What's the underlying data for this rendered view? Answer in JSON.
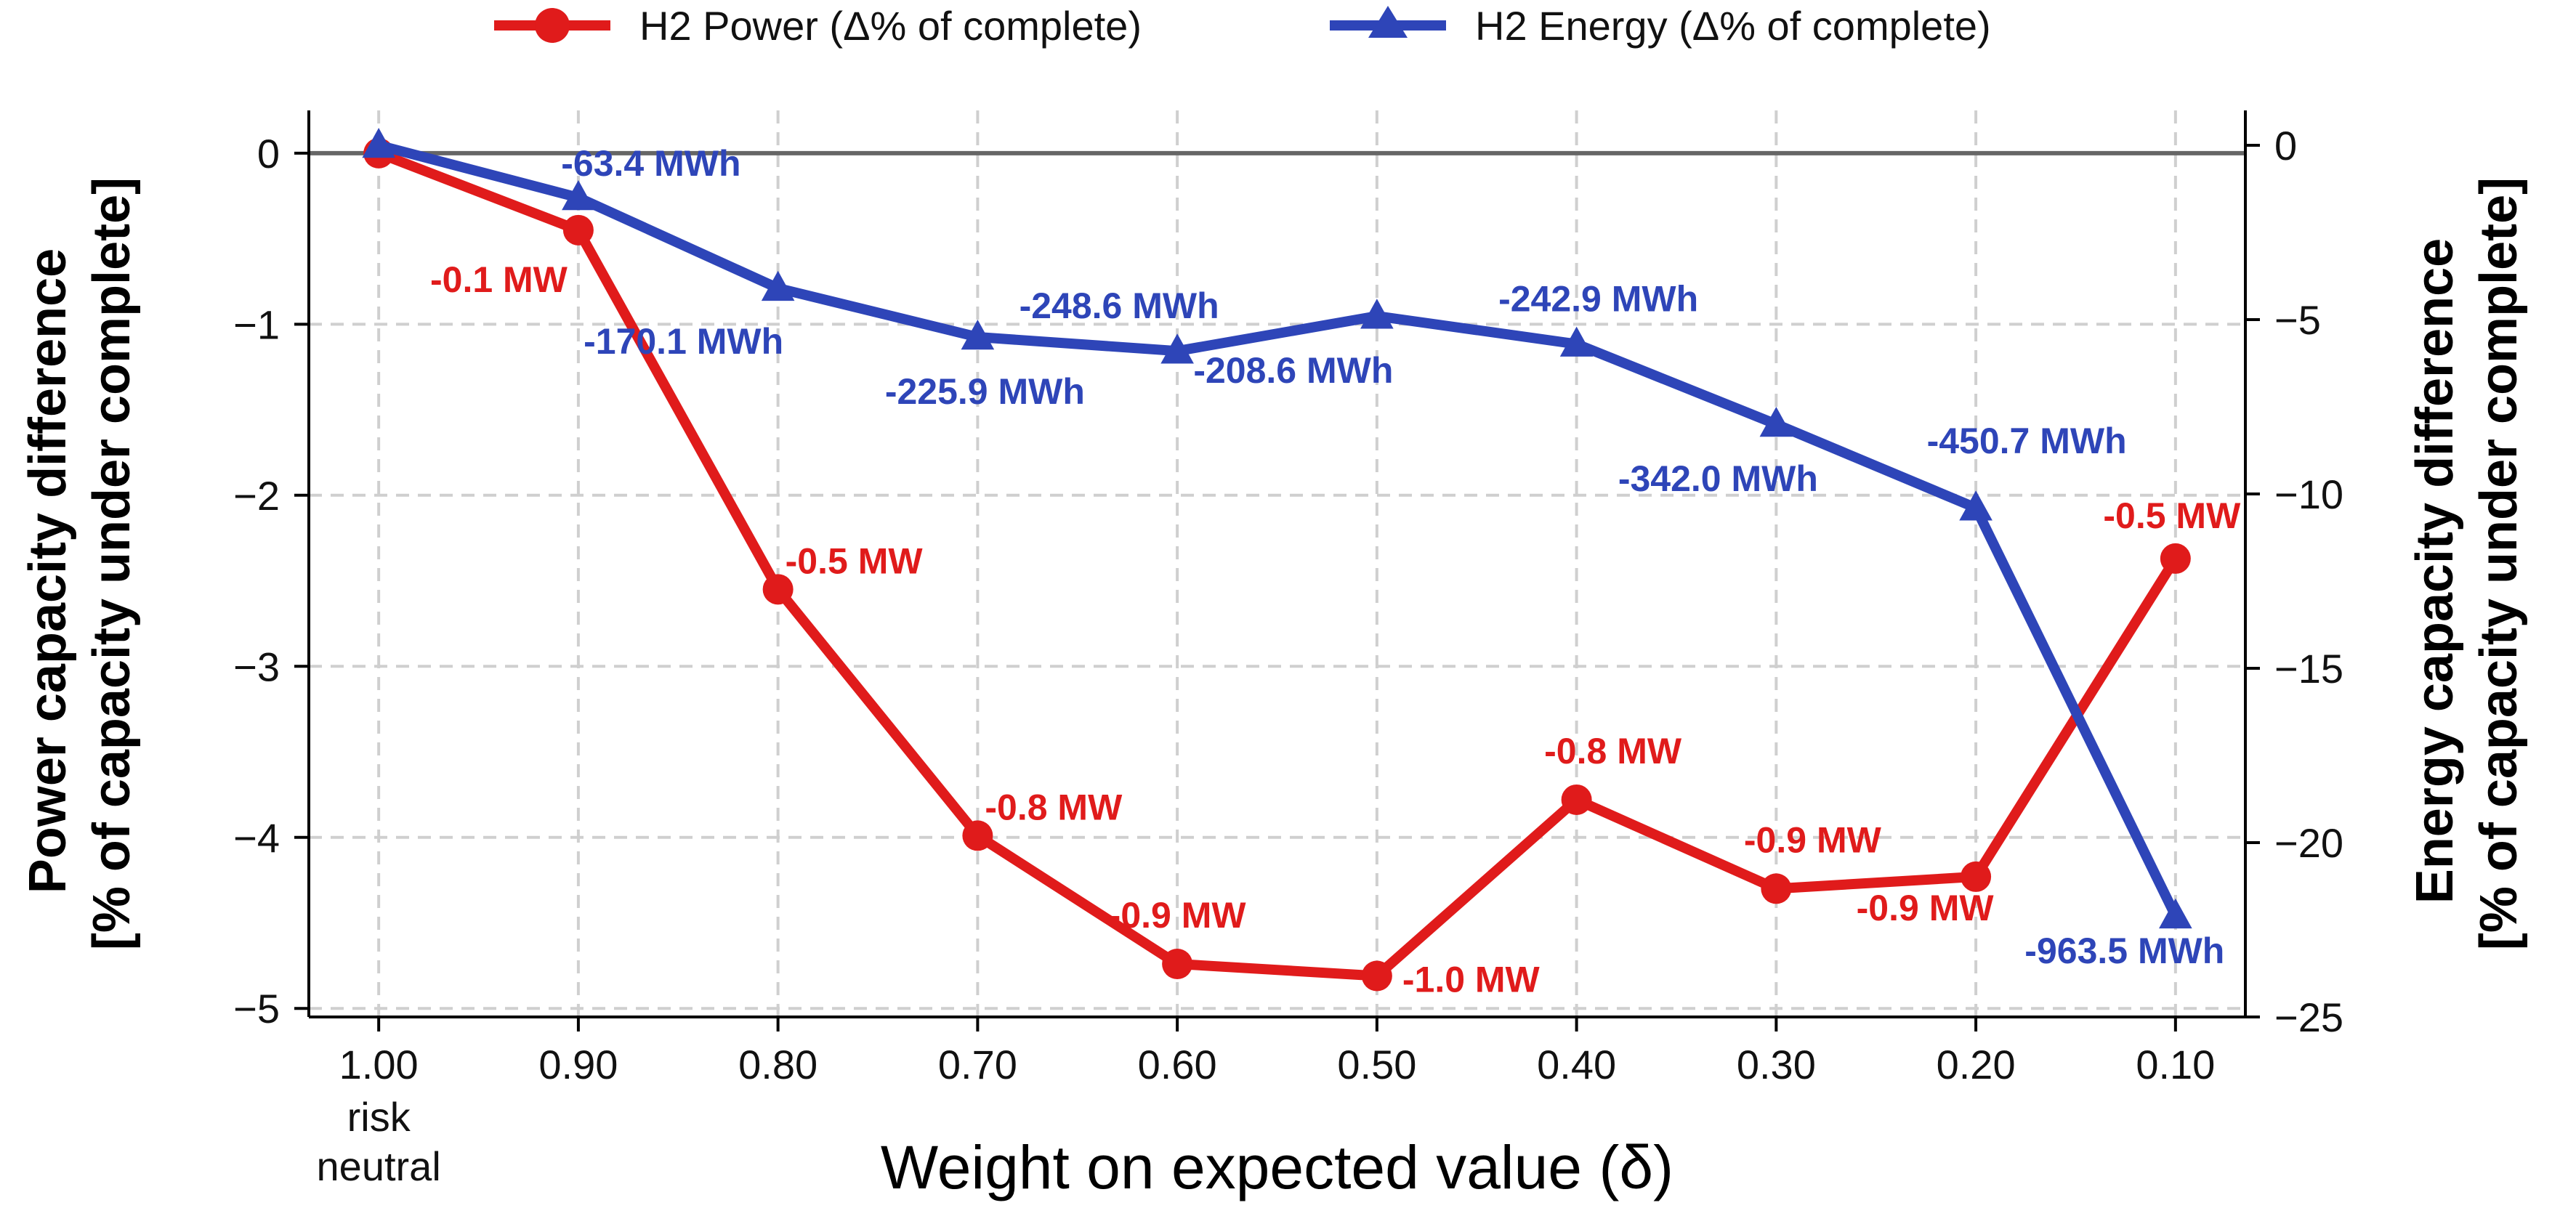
{
  "chart_data": {
    "type": "line",
    "xlabel": "Weight on expected value (δ)",
    "ylabel_left": [
      "Power capacity difference",
      "[% of capacity under complete]"
    ],
    "ylabel_right": [
      "Energy capacity difference",
      "[% of capacity under complete]"
    ],
    "x_tick_labels": [
      "1.00",
      "0.90",
      "0.80",
      "0.70",
      "0.60",
      "0.50",
      "0.40",
      "0.30",
      "0.20",
      "0.10"
    ],
    "x_sub_label": [
      "risk",
      "neutral"
    ],
    "x_values": [
      1.0,
      0.9,
      0.8,
      0.7,
      0.6,
      0.5,
      0.4,
      0.3,
      0.2,
      0.1
    ],
    "xlim": [
      1.035,
      0.065
    ],
    "left_ylim": [
      -5.05,
      0.25
    ],
    "left_yticks": [
      0,
      -1,
      -2,
      -3,
      -4,
      -5
    ],
    "right_ylim": [
      -25.0,
      1.0
    ],
    "right_yticks": [
      0,
      -5,
      -10,
      -15,
      -20,
      -25
    ],
    "grid": true,
    "legend_position": "top-center",
    "series": [
      {
        "name": "H2 Power (Δ% of complete)",
        "axis": "left",
        "color": "#e01b1b",
        "marker": "circle",
        "values": [
          0.0,
          -0.45,
          -2.55,
          -3.99,
          -4.74,
          -4.81,
          -3.78,
          -4.3,
          -4.23,
          -2.37
        ],
        "labels": [
          "",
          "-0.1 MW",
          "-0.5 MW",
          "-0.8 MW",
          "-0.9 MW",
          "-1.0 MW",
          "-0.8 MW",
          "-0.9 MW",
          "-0.9 MW",
          "-0.5 MW"
        ]
      },
      {
        "name": "H2 Energy (Δ% of complete)",
        "axis": "right",
        "color": "#2e45b8",
        "marker": "triangle",
        "values": [
          0.0,
          -1.5,
          -4.1,
          -5.5,
          -5.9,
          -4.9,
          -5.7,
          -8.0,
          -10.4,
          -22.1
        ],
        "labels": [
          "",
          "-63.4 MWh",
          "-170.1 MWh",
          "-225.9 MWh",
          "-248.6 MWh",
          "-208.6 MWh",
          "-242.9 MWh",
          "-342.0 MWh",
          "-450.7 MWh",
          "-963.5 MWh"
        ]
      }
    ]
  }
}
